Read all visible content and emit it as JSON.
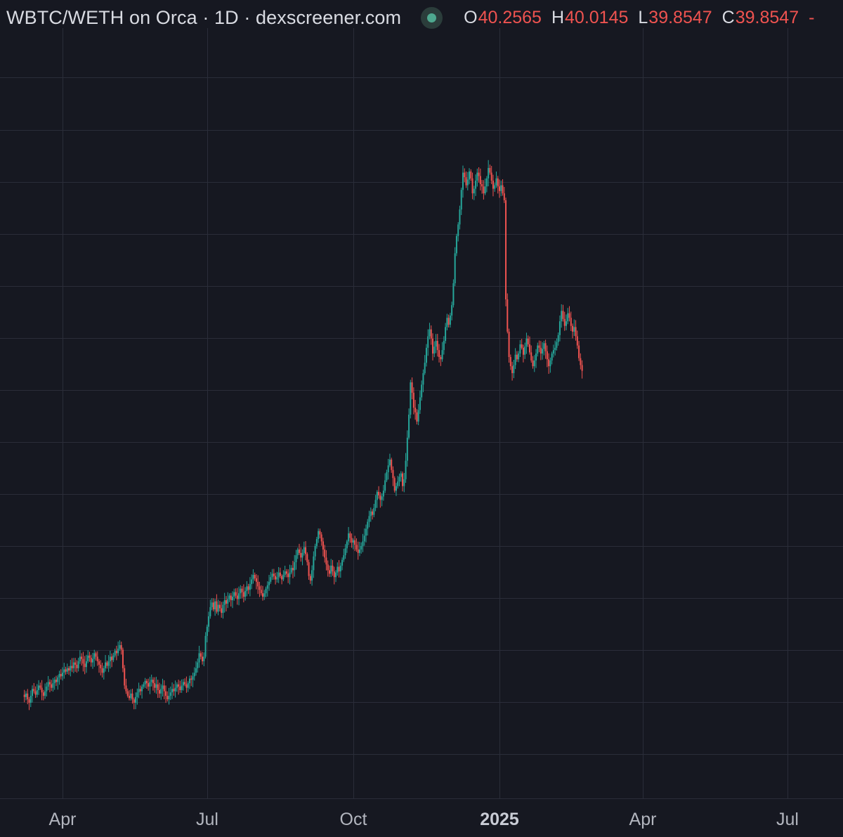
{
  "header": {
    "title": "WBTC/WETH on Orca · 1D · dexscreener.com",
    "ohlc": [
      {
        "key": "O",
        "value": "40.2565"
      },
      {
        "key": "H",
        "value": "40.0145"
      },
      {
        "key": "L",
        "value": "39.8547"
      },
      {
        "key": "C",
        "value": "39.8547"
      }
    ],
    "ohlc_trailing": "-"
  },
  "colors": {
    "background": "#161821",
    "grid": "#2a2d39",
    "up": "#26a69a",
    "down": "#ef5350",
    "status_dot": "#4ea88f"
  },
  "x_axis": {
    "ticks": [
      {
        "label": "Apr",
        "bold": false
      },
      {
        "label": "Jul",
        "bold": false
      },
      {
        "label": "Oct",
        "bold": false
      },
      {
        "label": "2025",
        "bold": true
      },
      {
        "label": "Apr",
        "bold": false
      },
      {
        "label": "Jul",
        "bold": false
      }
    ]
  },
  "chart_data": {
    "type": "candlestick",
    "title": "WBTC/WETH on Orca · 1D · dexscreener.com",
    "interval": "1D",
    "x_range": [
      "2024-03-08",
      "2025-07-06"
    ],
    "y_axis_visible": false,
    "grid": true,
    "series": [
      {
        "x_start": "2024-03-08",
        "close_by_day": [
          18.5,
          18.8,
          18.3,
          18.0,
          18.6,
          19.2,
          19.0,
          18.7,
          19.1,
          19.5,
          19.3,
          18.9,
          18.6,
          19.0,
          19.4,
          19.8,
          19.6,
          19.3,
          19.7,
          20.0,
          19.8,
          20.2,
          20.5,
          20.3,
          20.6,
          20.9,
          20.7,
          21.0,
          20.8,
          21.2,
          21.0,
          21.5,
          21.3,
          21.0,
          21.6,
          22.0,
          21.8,
          21.4,
          21.1,
          21.6,
          22.1,
          21.9,
          21.5,
          21.8,
          22.3,
          22.0,
          21.6,
          21.3,
          21.0,
          20.6,
          21.0,
          21.5,
          21.2,
          21.6,
          22.0,
          21.7,
          22.1,
          22.5,
          22.3,
          22.7,
          23.0,
          22.6,
          21.0,
          19.5,
          19.0,
          18.6,
          18.4,
          18.8,
          18.3,
          18.0,
          18.5,
          18.9,
          19.2,
          19.0,
          19.4,
          19.6,
          19.9,
          19.7,
          19.4,
          19.8,
          20.0,
          19.7,
          19.3,
          19.6,
          19.1,
          18.8,
          19.2,
          19.5,
          19.0,
          18.6,
          18.3,
          18.6,
          18.9,
          19.2,
          19.0,
          19.3,
          19.6,
          19.4,
          19.1,
          19.5,
          19.8,
          19.6,
          19.3,
          19.7,
          20.1,
          20.0,
          20.3,
          20.6,
          21.0,
          21.5,
          22.3,
          22.0,
          21.6,
          22.0,
          23.8,
          24.6,
          25.5,
          26.3,
          26.7,
          26.1,
          26.8,
          25.9,
          26.5,
          26.2,
          25.8,
          26.5,
          26.9,
          26.6,
          27.0,
          27.3,
          26.9,
          27.2,
          27.6,
          27.3,
          27.0,
          27.5,
          27.9,
          27.6,
          27.2,
          27.7,
          28.1,
          27.8,
          28.3,
          28.7,
          29.1,
          28.8,
          28.5,
          28.1,
          27.8,
          27.5,
          27.2,
          27.5,
          27.9,
          28.2,
          28.5,
          28.9,
          29.2,
          29.0,
          28.7,
          28.9,
          29.3,
          29.0,
          28.7,
          29.1,
          29.4,
          29.2,
          28.9,
          29.3,
          29.7,
          29.5,
          30.2,
          30.8,
          31.3,
          31.0,
          30.6,
          31.0,
          31.5,
          30.9,
          30.2,
          29.0,
          28.6,
          29.5,
          30.7,
          31.6,
          32.2,
          32.9,
          32.6,
          32.0,
          31.3,
          30.6,
          30.0,
          29.5,
          29.2,
          29.9,
          29.4,
          28.9,
          29.3,
          29.8,
          29.4,
          29.9,
          30.4,
          30.8,
          31.4,
          32.0,
          32.7,
          32.3,
          31.9,
          32.1,
          31.7,
          31.3,
          31.0,
          31.3,
          31.6,
          32.0,
          32.5,
          33.1,
          33.7,
          34.2,
          34.6,
          34.3,
          34.9,
          35.6,
          36.3,
          36.0,
          35.6,
          35.9,
          36.4,
          37.3,
          38.0,
          38.6,
          39.1,
          38.2,
          37.5,
          36.4,
          36.8,
          37.2,
          37.6,
          37.9,
          36.8,
          37.4,
          39.0,
          41.0,
          43.0,
          45.8,
          44.9,
          43.6,
          43.2,
          42.4,
          43.4,
          44.5,
          45.6,
          46.6,
          47.5,
          48.8,
          49.8,
          50.4,
          49.6,
          48.3,
          48.9,
          49.4,
          48.6,
          48.0,
          47.8,
          48.6,
          49.4,
          50.6,
          51.4,
          50.8,
          51.6,
          52.5,
          54.4,
          57.0,
          58.5,
          59.5,
          60.8,
          62.5,
          64.0,
          63.6,
          62.9,
          63.4,
          64.1,
          63.5,
          62.2,
          62.6,
          63.3,
          64.0,
          63.7,
          63.0,
          62.8,
          62.2,
          62.8,
          63.5,
          64.4,
          64.0,
          63.3,
          62.6,
          62.9,
          63.5,
          62.8,
          62.4,
          62.9,
          62.2,
          61.6,
          53.0,
          50.2,
          48.0,
          47.2,
          46.6,
          47.3,
          48.2,
          47.8,
          48.3,
          49.1,
          48.8,
          48.2,
          48.9,
          49.6,
          49.1,
          48.4,
          47.7,
          47.2,
          47.7,
          48.3,
          49.0,
          48.8,
          48.3,
          48.7,
          49.2,
          48.5,
          47.8,
          47.2,
          47.7,
          48.3,
          48.6,
          48.8,
          49.3,
          49.9,
          51.1,
          52.0,
          51.3,
          50.7,
          51.1,
          51.8,
          51.4,
          50.7,
          50.2,
          50.6,
          49.8,
          49.0,
          47.9,
          47.3,
          46.8
        ]
      }
    ],
    "last_bar": {
      "open": 40.2565,
      "high": 40.0145,
      "low": 39.8547,
      "close": 39.8547
    }
  }
}
